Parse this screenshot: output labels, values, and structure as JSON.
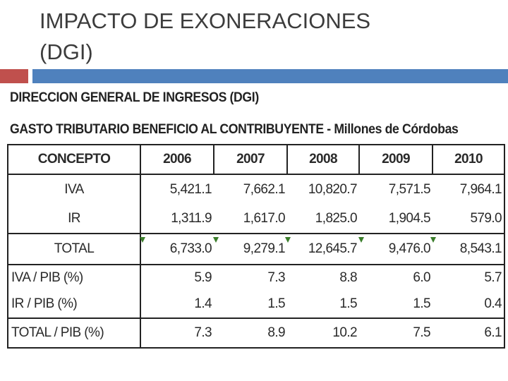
{
  "slide": {
    "title_line1": "IMPACTO DE EXONERACIONES",
    "title_line2": "(DGI)"
  },
  "document": {
    "heading1": "DIRECCION GENERAL DE INGRESOS (DGI)",
    "heading2": "GASTO TRIBUTARIO BENEFICIO AL CONTRIBUYENTE - Millones de Córdobas"
  },
  "table": {
    "headers": [
      "CONCEPTO",
      "2006",
      "2007",
      "2008",
      "2009",
      "2010"
    ],
    "rows": [
      [
        "IVA",
        "5,421.1",
        "7,662.1",
        "10,820.7",
        "7,571.5",
        "7,964.1"
      ],
      [
        "IR",
        "1,311.9",
        "1,617.0",
        "1,825.0",
        "1,904.5",
        "579.0"
      ],
      [
        "TOTAL",
        "6,733.0",
        "9,279.1",
        "12,645.7",
        "9,476.0",
        "8,543.1"
      ],
      [
        "IVA / PIB (%)",
        "5.9",
        "7.3",
        "8.8",
        "6.0",
        "5.7"
      ],
      [
        "IR / PIB (%)",
        "1.4",
        "1.5",
        "1.5",
        "1.5",
        "0.4"
      ],
      [
        "TOTAL / PIB (%)",
        "7.3",
        "8.9",
        "10.2",
        "7.5",
        "6.1"
      ]
    ]
  },
  "colors": {
    "accent_red": "#c0504d",
    "accent_blue": "#4f81bd",
    "tick_green": "#3a7d2a"
  }
}
